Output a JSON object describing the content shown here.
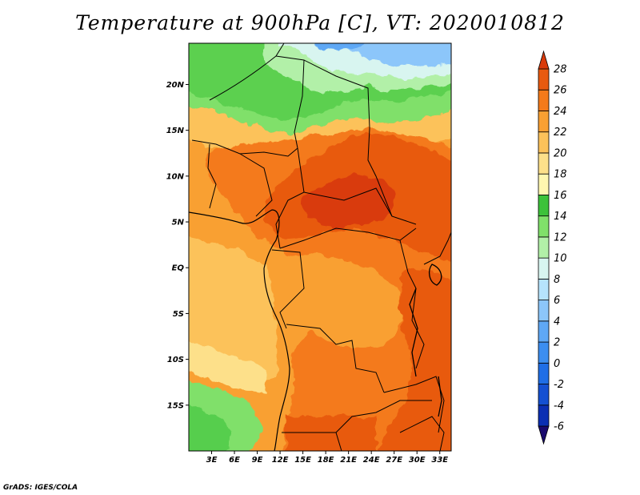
{
  "title": "Temperature at 900hPa [C], VT: 2020010812",
  "credit": "GrADS: IGES/COLA",
  "map": {
    "lon_range": [
      0,
      34.5
    ],
    "lat_range": [
      -20,
      24.5
    ],
    "lon_ticks": [
      {
        "value": 3,
        "label": "3E"
      },
      {
        "value": 6,
        "label": "6E"
      },
      {
        "value": 9,
        "label": "9E"
      },
      {
        "value": 12,
        "label": "12E"
      },
      {
        "value": 15,
        "label": "15E"
      },
      {
        "value": 18,
        "label": "18E"
      },
      {
        "value": 21,
        "label": "21E"
      },
      {
        "value": 24,
        "label": "24E"
      },
      {
        "value": 27,
        "label": "27E"
      },
      {
        "value": 30,
        "label": "30E"
      },
      {
        "value": 33,
        "label": "33E"
      }
    ],
    "lat_ticks": [
      {
        "value": 20,
        "label": "20N"
      },
      {
        "value": 15,
        "label": "15N"
      },
      {
        "value": 10,
        "label": "10N"
      },
      {
        "value": 5,
        "label": "5N"
      },
      {
        "value": 0,
        "label": "EQ"
      },
      {
        "value": -5,
        "label": "5S"
      },
      {
        "value": -10,
        "label": "10S"
      },
      {
        "value": -15,
        "label": "15S"
      }
    ]
  },
  "colorbar": {
    "levels": [
      "-6",
      "-4",
      "-2",
      "0",
      "2",
      "4",
      "6",
      "8",
      "10",
      "12",
      "14",
      "16",
      "18",
      "20",
      "22",
      "24",
      "26",
      "28"
    ],
    "colors": [
      "#1a0a6e",
      "#0b2fb3",
      "#1450d2",
      "#1f6ee6",
      "#3c8ef0",
      "#5fa8f5",
      "#8cc6fa",
      "#b6e3fc",
      "#d8f5f0",
      "#b2f0a8",
      "#80e06a",
      "#3cc23a",
      "#fff7b0",
      "#fde08a",
      "#fcc25a",
      "#f9a032",
      "#f47a1a",
      "#e85a10",
      "#d93a0a"
    ]
  }
}
